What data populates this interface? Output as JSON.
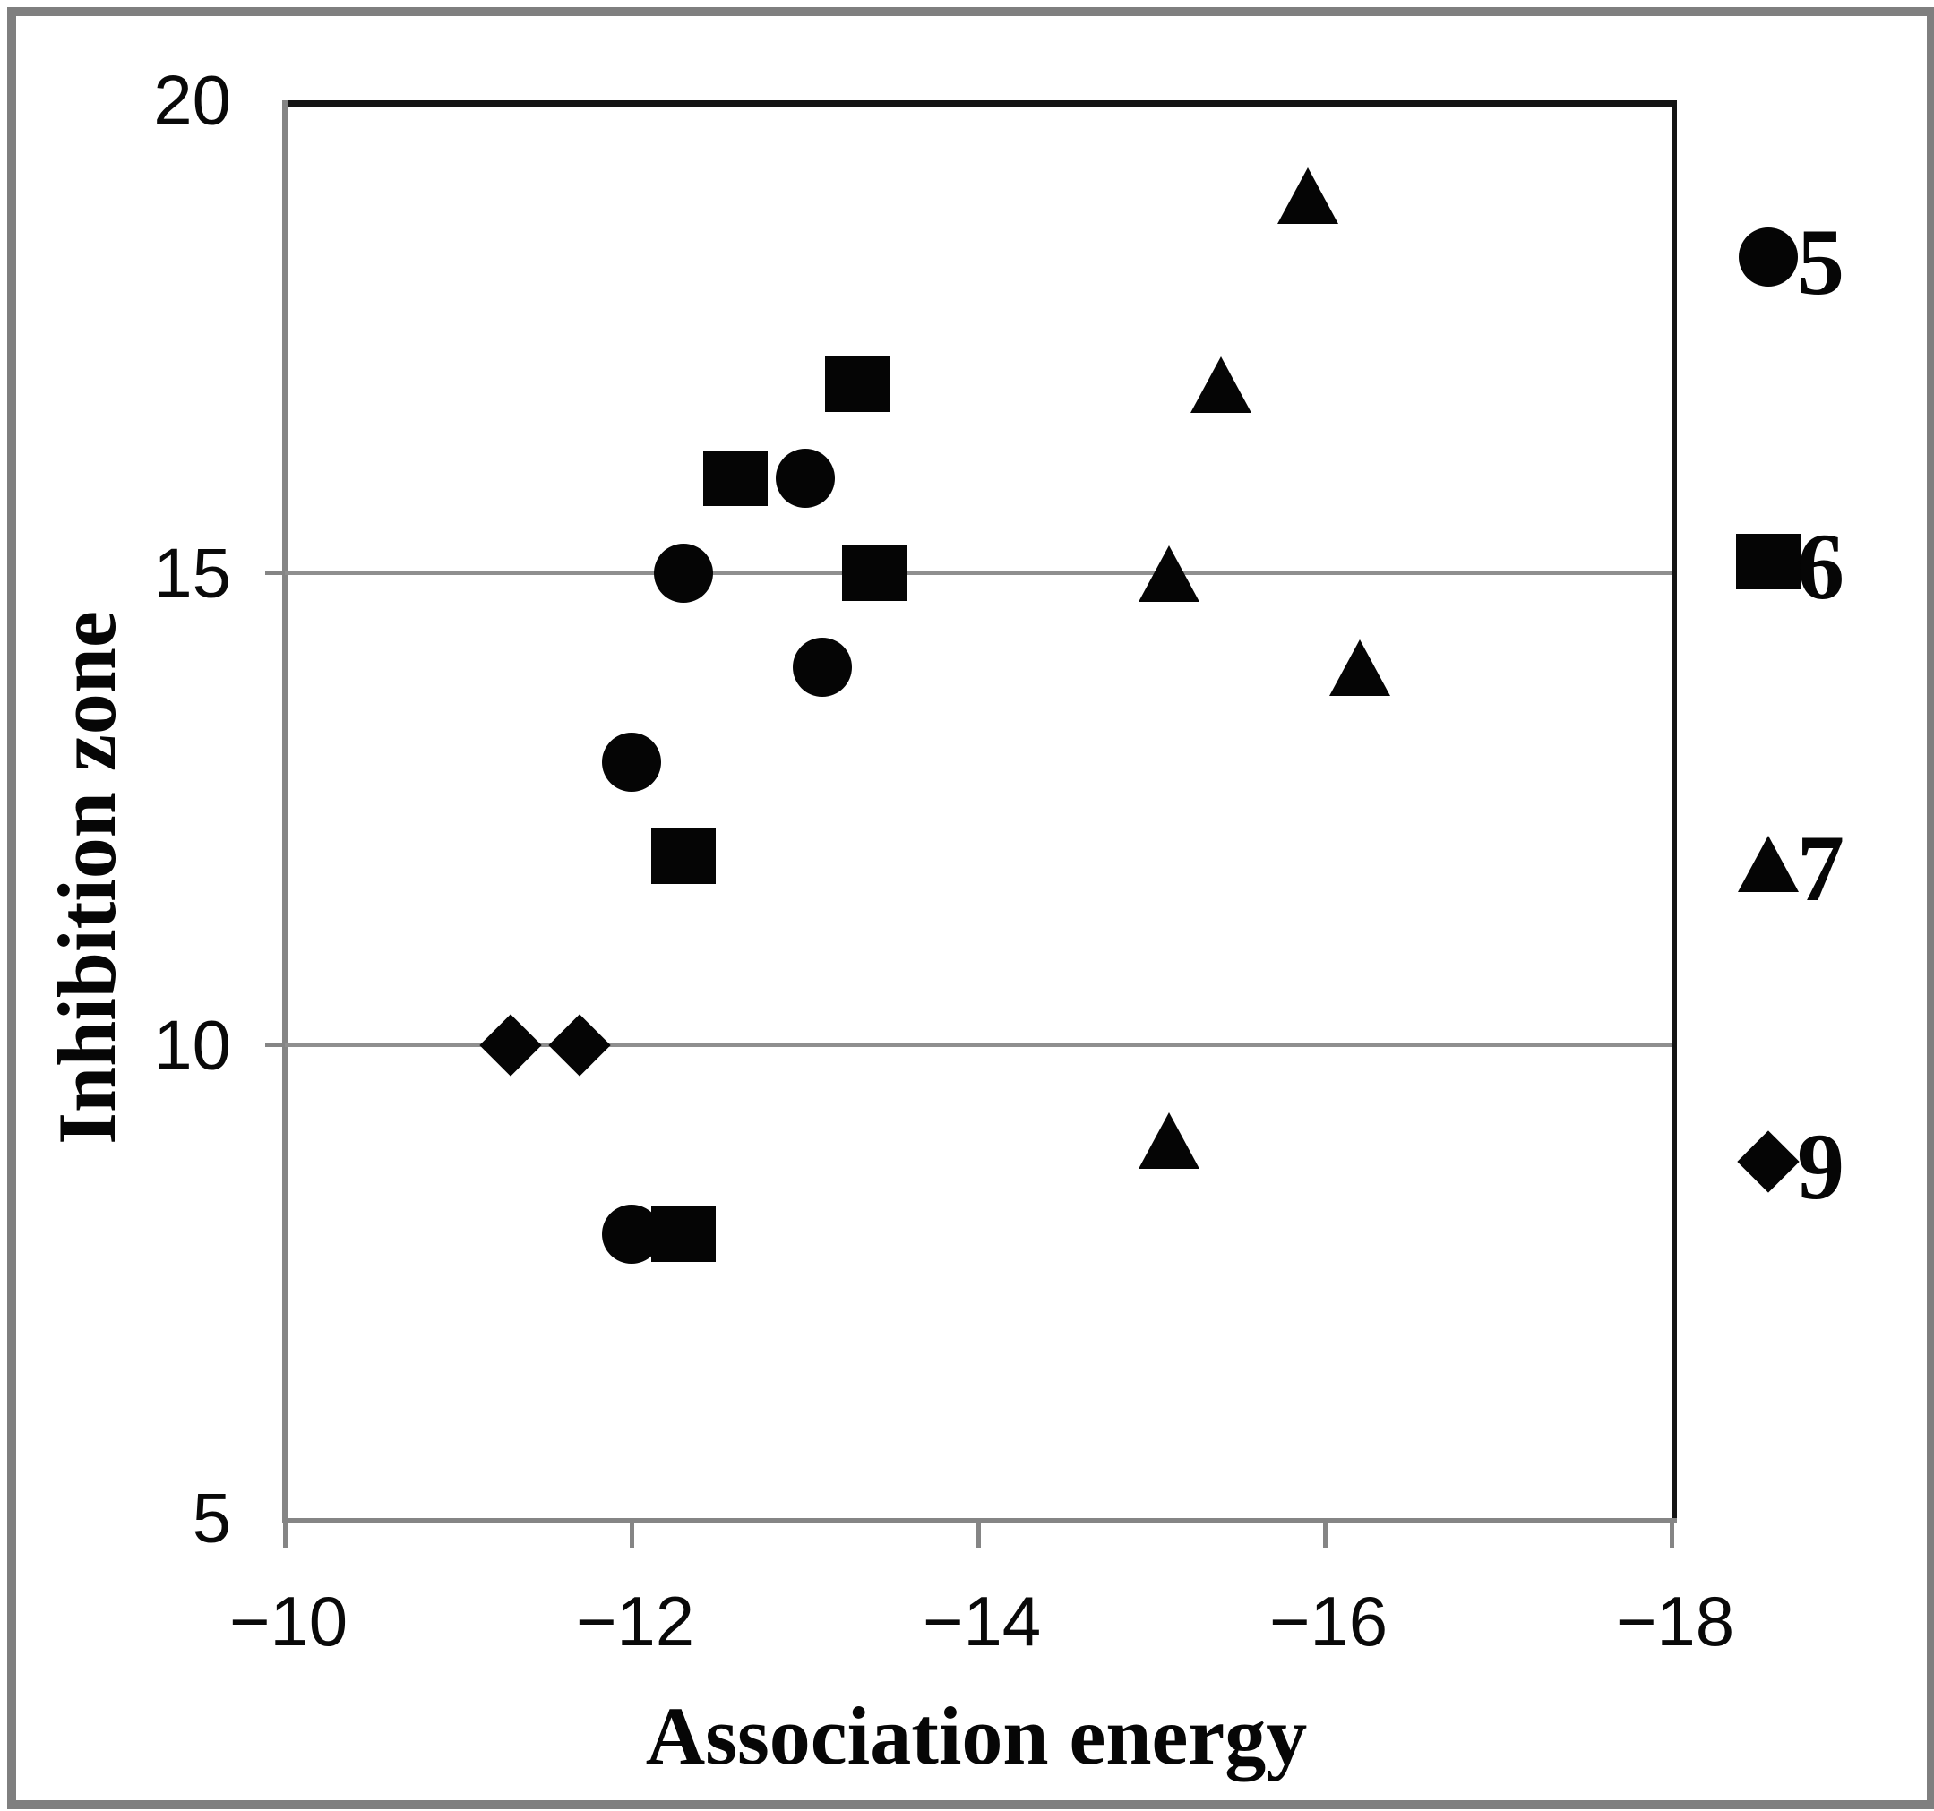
{
  "figure": {
    "background_color": "#ffffff",
    "outer_border_color": "#7f7f7f",
    "marker_color": "#050505",
    "gridline_color": "#8f8f8f",
    "axis_color": "#858585",
    "frame_color": "#141414"
  },
  "chart_data": {
    "type": "scatter",
    "title": "",
    "xlabel": "Association energy",
    "ylabel": "Inhibition zone",
    "x_axis": {
      "min": -10,
      "max": -18,
      "reversed": true,
      "ticks": [
        -10,
        -12,
        -14,
        -16,
        -18
      ],
      "tick_labels": [
        "−10",
        "−12",
        "−14",
        "−16",
        "−18"
      ]
    },
    "y_axis": {
      "min": 5,
      "max": 20,
      "ticks": [
        20,
        15,
        10,
        5
      ],
      "tick_labels": [
        "20",
        "15",
        "10",
        "5"
      ],
      "gridlines_at": [
        15,
        10
      ]
    },
    "grid": "horizontal-only",
    "legend_position": "right",
    "series": [
      {
        "name": "5",
        "marker": "circle",
        "points": [
          [
            -12.3,
            15
          ],
          [
            -13.0,
            16
          ],
          [
            -13.1,
            14
          ],
          [
            -12.0,
            13
          ],
          [
            -12.0,
            8
          ]
        ]
      },
      {
        "name": "6",
        "marker": "square",
        "points": [
          [
            -13.3,
            17
          ],
          [
            -12.6,
            16
          ],
          [
            -13.4,
            15
          ],
          [
            -12.3,
            12
          ],
          [
            -12.3,
            8
          ]
        ]
      },
      {
        "name": "7",
        "marker": "triangle",
        "points": [
          [
            -15.9,
            19
          ],
          [
            -15.4,
            17
          ],
          [
            -15.1,
            15
          ],
          [
            -16.2,
            14
          ],
          [
            -15.1,
            9
          ]
        ]
      },
      {
        "name": "9",
        "marker": "diamond",
        "points": [
          [
            -11.3,
            10
          ],
          [
            -11.7,
            10
          ]
        ]
      }
    ],
    "legend_entries": [
      {
        "label": "5",
        "marker": "circle"
      },
      {
        "label": "6",
        "marker": "square"
      },
      {
        "label": "7",
        "marker": "triangle"
      },
      {
        "label": "9",
        "marker": "diamond"
      }
    ]
  }
}
